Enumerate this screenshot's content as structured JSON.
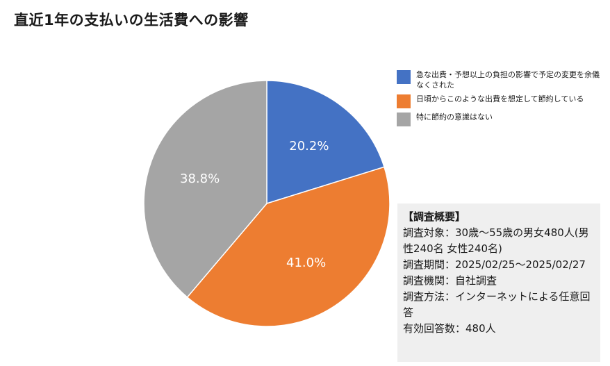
{
  "title": "直近1年の支払いの生活費への影響",
  "chart_data": {
    "type": "pie",
    "title": "直近1年の支払いの生活費への影響",
    "categories": [
      "急な出費・予想以上の負担の影響で予定の変更を余儀なくされた",
      "日頃からこのような出費を想定して節約している",
      "特に節約の意識はない"
    ],
    "values": [
      20.2,
      41.0,
      38.8
    ],
    "value_labels": [
      "20.2%",
      "41.0%",
      "38.8%"
    ],
    "colors": [
      "#4472c4",
      "#ed7d31",
      "#a5a5a5"
    ],
    "legend": "right",
    "start": "12 o'clock",
    "direction": "clockwise"
  },
  "survey": {
    "heading": "【調査概要】",
    "lines": [
      "調査対象：30歳〜55歳の男女480人(男性240名 女性240名)",
      "調査期間：2025/02/25〜2025/02/27",
      "調査機関：自社調査",
      "調査方法：インターネットによる任意回答",
      "有効回答数：480人"
    ]
  }
}
